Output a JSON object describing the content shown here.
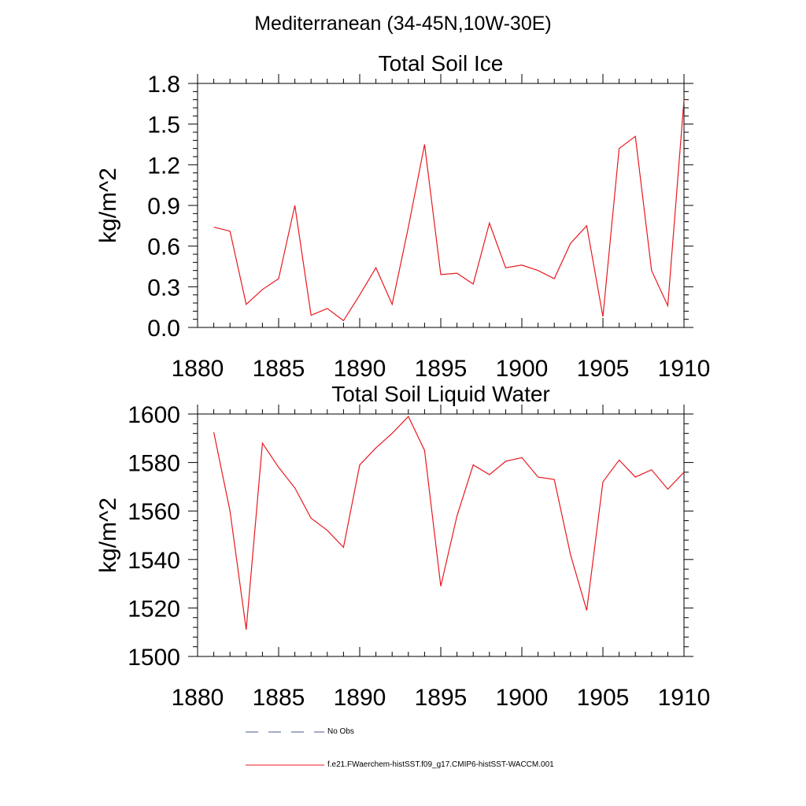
{
  "page_title": "Mediterranean (34-45N,10W-30E)",
  "chart_data": [
    {
      "type": "line",
      "title": "Total Soil Ice",
      "xlabel": "",
      "ylabel": "kg/m^2",
      "xlim": [
        1880,
        1910
      ],
      "ylim": [
        0.0,
        1.8
      ],
      "xticks": [
        1880,
        1885,
        1890,
        1895,
        1900,
        1905,
        1910
      ],
      "yticks": [
        "0.0",
        "0.3",
        "0.6",
        "0.9",
        "1.2",
        "1.5",
        "1.8"
      ],
      "grid": false,
      "series": [
        {
          "name": "f.e21.FWaerchem-histSST.f09_g17.CMIP6-histSST-WACCM.001",
          "color": "#e8191f",
          "x": [
            1881,
            1882,
            1883,
            1884,
            1885,
            1886,
            1887,
            1888,
            1889,
            1890,
            1891,
            1892,
            1893,
            1894,
            1895,
            1896,
            1897,
            1898,
            1899,
            1900,
            1901,
            1902,
            1903,
            1904,
            1905,
            1906,
            1907,
            1908,
            1909,
            1910
          ],
          "y": [
            0.74,
            0.71,
            0.17,
            0.28,
            0.36,
            0.9,
            0.09,
            0.14,
            0.05,
            0.24,
            0.44,
            0.17,
            0.74,
            1.35,
            0.39,
            0.4,
            0.32,
            0.77,
            0.44,
            0.46,
            0.42,
            0.36,
            0.62,
            0.75,
            0.08,
            1.32,
            1.41,
            0.42,
            0.16,
            1.68
          ]
        }
      ]
    },
    {
      "type": "line",
      "title": "Total Soil Liquid Water",
      "xlabel": "",
      "ylabel": "kg/m^2",
      "xlim": [
        1880,
        1910
      ],
      "ylim": [
        1500,
        1600
      ],
      "xticks": [
        1880,
        1885,
        1890,
        1895,
        1900,
        1905,
        1910
      ],
      "yticks": [
        "1500",
        "1520",
        "1540",
        "1560",
        "1580",
        "1600"
      ],
      "grid": false,
      "series": [
        {
          "name": "f.e21.FWaerchem-histSST.f09_g17.CMIP6-histSST-WACCM.001",
          "color": "#e8191f",
          "x": [
            1881,
            1882,
            1883,
            1884,
            1885,
            1886,
            1887,
            1888,
            1889,
            1890,
            1891,
            1892,
            1893,
            1894,
            1895,
            1896,
            1897,
            1898,
            1899,
            1900,
            1901,
            1902,
            1903,
            1904,
            1905,
            1906,
            1907,
            1908,
            1909,
            1910
          ],
          "y": [
            1592.5,
            1560,
            1511,
            1588,
            1578,
            1569.5,
            1557,
            1552,
            1545,
            1579,
            1586,
            1592,
            1599,
            1585,
            1529,
            1558,
            1579,
            1575,
            1580.5,
            1582,
            1574,
            1573,
            1542,
            1519,
            1572,
            1581,
            1574,
            1577,
            1569,
            1576
          ]
        }
      ]
    }
  ],
  "legend": {
    "items": [
      {
        "label": "No Obs",
        "style": "dashed",
        "color": "#4a5a8a"
      },
      {
        "label": "f.e21.FWaerchem-histSST.f09_g17.CMIP6-histSST-WACCM.001",
        "style": "solid",
        "color": "#e8191f"
      }
    ]
  }
}
